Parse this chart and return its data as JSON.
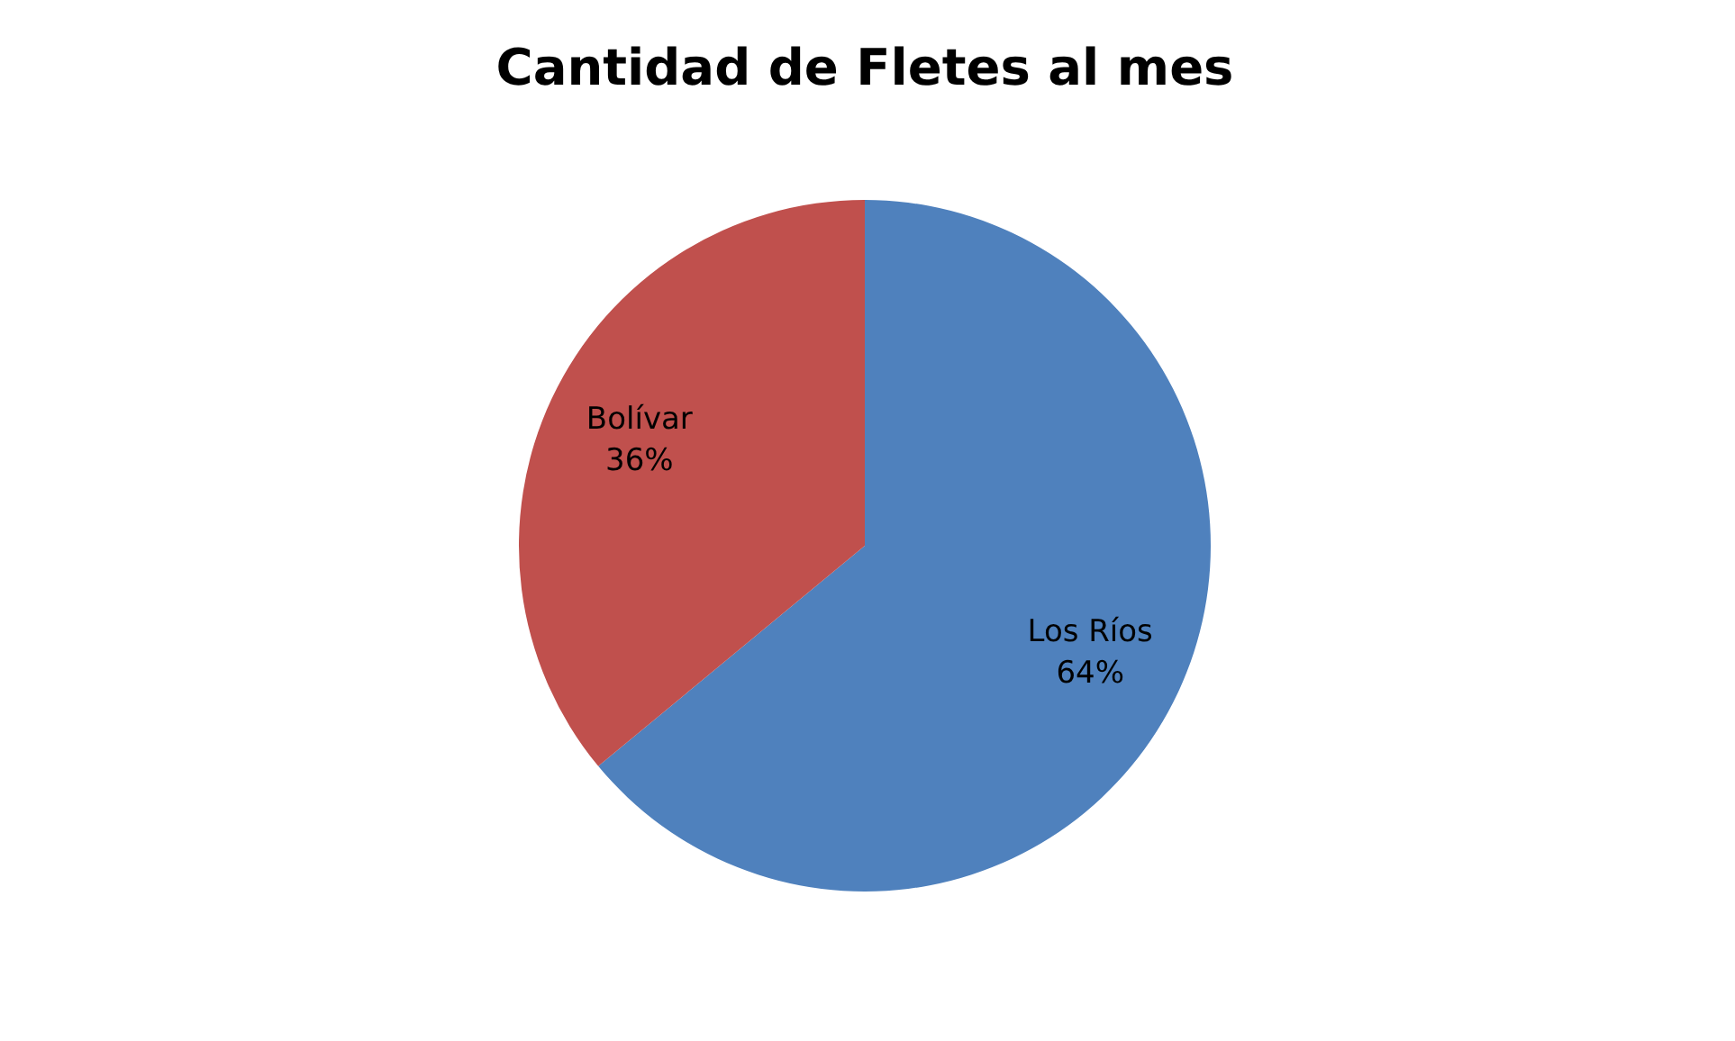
{
  "chart_data": {
    "type": "pie",
    "title": "Cantidad de Fletes al mes",
    "categories": [
      "Los Ríos",
      "Bolívar"
    ],
    "values": [
      64,
      36
    ],
    "colors": [
      "#4f81bd",
      "#c0504d"
    ],
    "value_labels": [
      "64%",
      "36%"
    ],
    "legend": false
  }
}
